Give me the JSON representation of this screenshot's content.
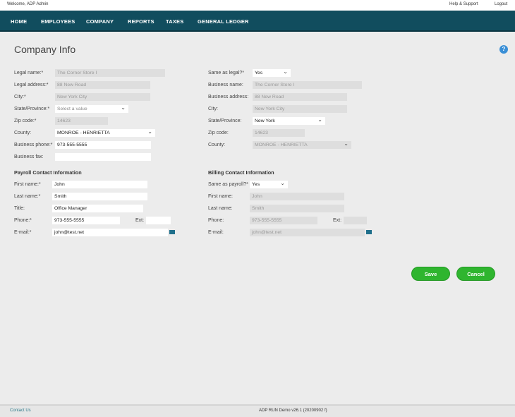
{
  "header": {
    "welcome": "Welcome, ADP Admin",
    "help": "Help & Support",
    "logout": "Logout"
  },
  "nav": [
    "HOME",
    "EMPLOYEES",
    "COMPANY",
    "REPORTS",
    "TAXES",
    "GENERAL LEDGER"
  ],
  "page_title": "Company Info",
  "legal": {
    "legal_name": {
      "label": "Legal name:*",
      "value": "The Corner Store I"
    },
    "legal_address": {
      "label": "Legal address:*",
      "value": "88 New Road"
    },
    "city": {
      "label": "City:*",
      "value": "New York City"
    },
    "state": {
      "label": "State/Province:*",
      "value": "Select a value"
    },
    "zip": {
      "label": "Zip code:*",
      "value": "14623"
    },
    "county": {
      "label": "County:",
      "value": "MONROE - HENRIETTA"
    },
    "phone": {
      "label": "Business phone:*",
      "value": "973-555-5555"
    },
    "fax": {
      "label": "Business fax:",
      "value": ""
    }
  },
  "business": {
    "same": {
      "label": "Same as legal?*",
      "value": "Yes"
    },
    "name": {
      "label": "Business name:",
      "value": "The Corner Store I"
    },
    "address": {
      "label": "Business address:",
      "value": "88 New Road"
    },
    "city": {
      "label": "City:",
      "value": "New York City"
    },
    "state": {
      "label": "State/Province:",
      "value": "New York"
    },
    "zip": {
      "label": "Zip code:",
      "value": "14623"
    },
    "county": {
      "label": "County:",
      "value": "MONROE - HENRIETTA"
    }
  },
  "payroll": {
    "heading": "Payroll Contact Information",
    "first": {
      "label": "First name:*",
      "value": "John"
    },
    "last": {
      "label": "Last name:*",
      "value": "Smith"
    },
    "title": {
      "label": "Title:",
      "value": "Office Manager"
    },
    "phone": {
      "label": "Phone:*",
      "value": "973-555-5555"
    },
    "ext": {
      "label": "Ext:",
      "value": ""
    },
    "email": {
      "label": "E-mail:*",
      "value": "john@test.net"
    }
  },
  "billing": {
    "heading": "Billing Contact Information",
    "same": {
      "label": "Same as payroll?*",
      "value": "Yes"
    },
    "first": {
      "label": "First name:",
      "value": "John"
    },
    "last": {
      "label": "Last name:",
      "value": "Smith"
    },
    "phone": {
      "label": "Phone:",
      "value": "973-555-5555"
    },
    "ext": {
      "label": "Ext:",
      "value": ""
    },
    "email": {
      "label": "E-mail:",
      "value": "john@test.net"
    }
  },
  "buttons": {
    "save": "Save",
    "cancel": "Cancel"
  },
  "footer": {
    "contact": "Contact Us",
    "version": "ADP RUN Demo v26.1 (20200902 f)"
  },
  "colors": {
    "nav": "#114d5e",
    "button": "#2fb52f",
    "help": "#3a8fd6"
  }
}
